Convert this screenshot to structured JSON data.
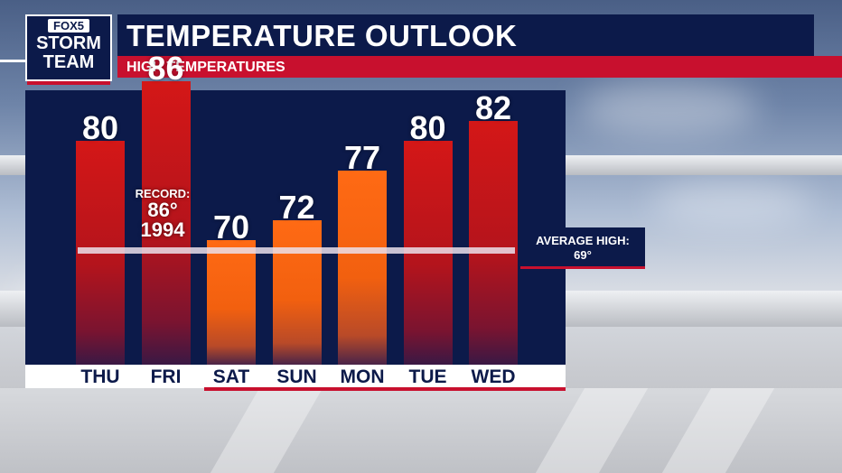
{
  "header": {
    "logo_top": "FOX5",
    "logo_line1": "STORM",
    "logo_line2": "TEAM",
    "title": "TEMPERATURE OUTLOOK",
    "subtitle": "HIGH TEMPERATURES"
  },
  "annotations": {
    "record_label": "RECORD:",
    "record_value": "86°",
    "record_year": "1994",
    "average_label": "AVERAGE HIGH:",
    "average_value": "69°"
  },
  "colors": {
    "navy": "#0c1a4a",
    "red": "#c8102e",
    "bar_red": "#d41717",
    "bar_orange": "#ff6a14"
  },
  "chart_data": {
    "type": "bar",
    "title": "TEMPERATURE OUTLOOK",
    "subtitle": "HIGH TEMPERATURES",
    "categories": [
      "THU",
      "FRI",
      "SAT",
      "SUN",
      "MON",
      "TUE",
      "WED"
    ],
    "values": [
      80,
      86,
      70,
      72,
      77,
      80,
      82
    ],
    "value_labels": [
      "80",
      "86",
      "70",
      "72",
      "77",
      "80",
      "82"
    ],
    "bar_colors": [
      "red",
      "red",
      "orange",
      "orange",
      "orange",
      "red",
      "red"
    ],
    "reference_lines": [
      {
        "value": 69
      }
    ],
    "legend": "none",
    "grid": false
  }
}
